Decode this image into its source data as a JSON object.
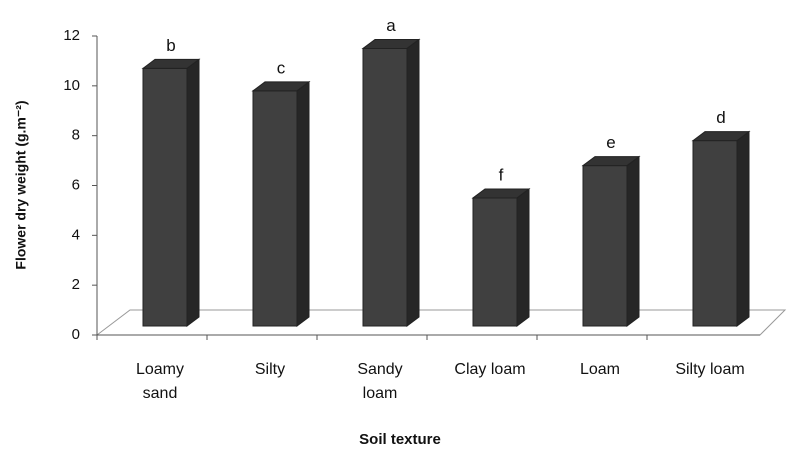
{
  "chart_data": {
    "type": "bar",
    "x_label": "Soil texture",
    "y_label": "Flower dry weight (g.m⁻²)",
    "categories": [
      "Loamy sand",
      "Silty",
      "Sandy loam",
      "Clay loam",
      "Loam",
      "Silty loam"
    ],
    "values": [
      10.7,
      9.8,
      11.5,
      5.5,
      6.8,
      7.8
    ],
    "significance_letters": [
      "b",
      "c",
      "a",
      "f",
      "e",
      "d"
    ],
    "color": "#404040",
    "ylim": [
      0,
      12
    ],
    "yticks": [
      0,
      2,
      4,
      6,
      8,
      10,
      12
    ],
    "grid": false
  }
}
